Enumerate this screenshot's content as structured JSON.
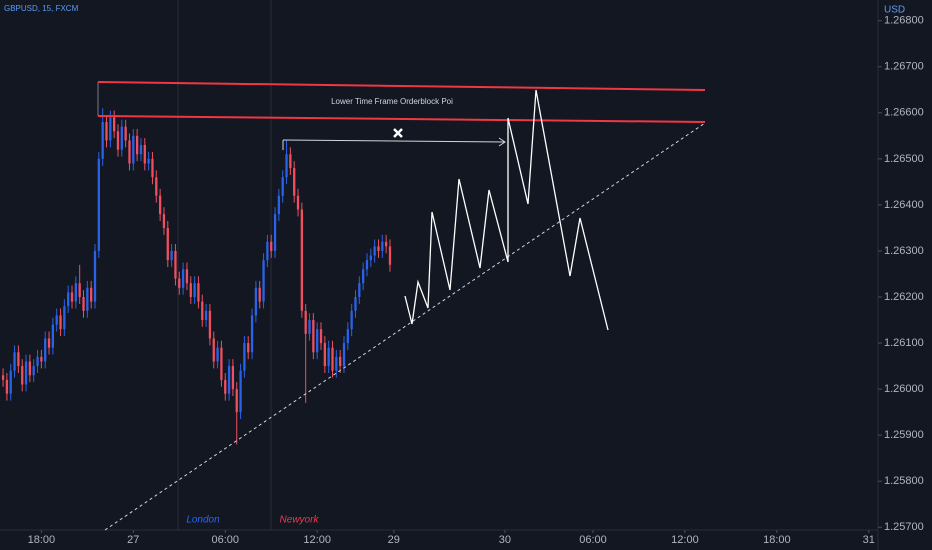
{
  "chart_data": {
    "type": "candlestick",
    "symbol": "GBPUSD, 15, FXCM",
    "currency": "USD",
    "annotations": [
      "Lower Time Frame Orderblock Poi",
      "London",
      "Newyork"
    ],
    "up_color": "#2a62e8",
    "down_color": "#ef4f5e",
    "grid": false,
    "x": [
      0,
      1,
      2,
      3,
      4,
      5,
      6,
      7,
      8,
      9,
      10,
      11,
      12,
      13,
      14,
      15,
      16,
      17,
      18,
      19,
      20,
      21,
      22,
      23,
      24,
      25,
      26,
      27,
      28,
      29,
      30,
      31,
      32,
      33,
      34,
      35,
      36,
      37,
      38,
      39,
      40,
      41,
      42,
      43,
      44,
      45,
      46,
      47,
      48,
      49,
      50,
      51,
      52,
      53,
      54,
      55,
      56,
      57,
      58,
      59,
      60,
      61,
      62,
      63,
      64,
      65,
      66,
      67,
      68,
      69,
      70,
      71,
      72,
      73,
      74,
      75,
      76,
      77,
      78,
      79,
      80,
      81,
      82,
      83,
      84,
      85,
      86,
      87,
      88,
      89,
      90,
      91,
      92,
      93,
      94,
      95,
      96,
      97,
      98,
      99,
      100,
      101
    ],
    "open": [
      1.2603,
      1.2602,
      1.2599,
      1.2604,
      1.2608,
      1.2605,
      1.2601,
      1.2606,
      1.2603,
      1.2605,
      1.2607,
      1.2606,
      1.2611,
      1.2609,
      1.2614,
      1.2616,
      1.2613,
      1.2618,
      1.2621,
      1.2619,
      1.2623,
      1.262,
      1.2617,
      1.2622,
      1.2619,
      1.263,
      1.265,
      1.2658,
      1.2654,
      1.2659,
      1.2656,
      1.2652,
      1.2657,
      1.2654,
      1.2649,
      1.2655,
      1.2651,
      1.2653,
      1.2649,
      1.265,
      1.2646,
      1.2642,
      1.2638,
      1.2635,
      1.2628,
      1.263,
      1.2624,
      1.2622,
      1.2626,
      1.2623,
      1.262,
      1.2623,
      1.2619,
      1.2615,
      1.2617,
      1.2611,
      1.2606,
      1.2609,
      1.2602,
      1.2599,
      1.2605,
      1.26,
      1.2595,
      1.2604,
      1.261,
      1.2608,
      1.2616,
      1.2622,
      1.2619,
      1.2628,
      1.2632,
      1.263,
      1.2638,
      1.2642,
      1.2646,
      1.2651,
      1.2648,
      1.2642,
      1.2639,
      1.2617,
      1.2612,
      1.2615,
      1.2608,
      1.2613,
      1.261,
      1.2605,
      1.2609,
      1.2604,
      1.2607,
      1.2605,
      1.261,
      1.2613,
      1.2617,
      1.262,
      1.2623,
      1.2626,
      1.2628,
      1.2629,
      1.2631,
      1.263,
      1.2632,
      1.2631
    ],
    "high": [
      1.26045,
      1.26035,
      1.26055,
      1.26095,
      1.26095,
      1.26065,
      1.26075,
      1.26075,
      1.26065,
      1.26085,
      1.26085,
      1.26125,
      1.26125,
      1.26155,
      1.26175,
      1.26175,
      1.26195,
      1.26225,
      1.26225,
      1.26245,
      1.2627,
      1.26215,
      1.26235,
      1.26235,
      1.26315,
      1.26515,
      1.2661,
      1.26595,
      1.26605,
      1.26605,
      1.26575,
      1.26585,
      1.26585,
      1.26555,
      1.26565,
      1.26565,
      1.26545,
      1.26545,
      1.26515,
      1.26515,
      1.26475,
      1.26435,
      1.26395,
      1.26365,
      1.26315,
      1.26315,
      1.26255,
      1.26275,
      1.26275,
      1.26245,
      1.26245,
      1.26245,
      1.26205,
      1.26185,
      1.26185,
      1.26125,
      1.26105,
      1.26105,
      1.26035,
      1.26065,
      1.26065,
      1.26015,
      1.26055,
      1.26115,
      1.26115,
      1.26175,
      1.26235,
      1.26235,
      1.26295,
      1.26335,
      1.26335,
      1.26395,
      1.26435,
      1.26475,
      1.2654,
      1.26525,
      1.26495,
      1.26435,
      1.26405,
      1.26185,
      1.26165,
      1.26165,
      1.26145,
      1.26145,
      1.26115,
      1.26105,
      1.26105,
      1.26085,
      1.26085,
      1.26115,
      1.26145,
      1.26185,
      1.26215,
      1.26245,
      1.26275,
      1.26295,
      1.26305,
      1.26325,
      1.26325,
      1.26335,
      1.26335,
      1.26325
    ],
    "low": [
      1.26005,
      1.25975,
      1.25975,
      1.26025,
      1.26035,
      1.25995,
      1.25995,
      1.26015,
      1.26015,
      1.26035,
      1.26045,
      1.26045,
      1.26075,
      1.26075,
      1.26125,
      1.26115,
      1.26115,
      1.26165,
      1.26175,
      1.26175,
      1.26185,
      1.26155,
      1.26155,
      1.26175,
      1.26175,
      1.26285,
      1.26485,
      1.26525,
      1.26525,
      1.26545,
      1.26505,
      1.26505,
      1.26525,
      1.26475,
      1.26475,
      1.26495,
      1.26495,
      1.26475,
      1.26475,
      1.26445,
      1.26405,
      1.26365,
      1.26335,
      1.26265,
      1.26265,
      1.26225,
      1.26205,
      1.26205,
      1.26215,
      1.26185,
      1.26185,
      1.26175,
      1.26135,
      1.26135,
      1.26095,
      1.26045,
      1.26045,
      1.26005,
      1.25975,
      1.25975,
      1.25985,
      1.2588,
      1.25935,
      1.26025,
      1.26065,
      1.26065,
      1.26145,
      1.26175,
      1.26175,
      1.26265,
      1.26285,
      1.26285,
      1.26365,
      1.26405,
      1.26445,
      1.26465,
      1.26405,
      1.26375,
      1.26155,
      1.2597,
      1.26105,
      1.26065,
      1.26065,
      1.26085,
      1.26035,
      1.26035,
      1.26025,
      1.26025,
      1.26035,
      1.26035,
      1.26085,
      1.26115,
      1.26155,
      1.26185,
      1.26215,
      1.26245,
      1.26265,
      1.26275,
      1.26285,
      1.26285,
      1.26295,
      1.26255
    ],
    "close": [
      1.2602,
      1.2599,
      1.2604,
      1.2608,
      1.2605,
      1.2601,
      1.2606,
      1.2603,
      1.2605,
      1.2607,
      1.2606,
      1.2611,
      1.2609,
      1.2614,
      1.2616,
      1.2613,
      1.2618,
      1.2621,
      1.2619,
      1.2623,
      1.262,
      1.2617,
      1.2622,
      1.2619,
      1.263,
      1.265,
      1.2658,
      1.2654,
      1.2659,
      1.2656,
      1.2652,
      1.2657,
      1.2654,
      1.2649,
      1.2655,
      1.2651,
      1.2653,
      1.2649,
      1.265,
      1.2646,
      1.2642,
      1.2638,
      1.2635,
      1.2628,
      1.263,
      1.2624,
      1.2622,
      1.2626,
      1.2623,
      1.262,
      1.2623,
      1.2619,
      1.2615,
      1.2617,
      1.2611,
      1.2606,
      1.2609,
      1.2602,
      1.2599,
      1.2605,
      1.26,
      1.2595,
      1.2604,
      1.261,
      1.2608,
      1.2616,
      1.2622,
      1.2619,
      1.2628,
      1.2632,
      1.263,
      1.2638,
      1.2642,
      1.2646,
      1.2651,
      1.2648,
      1.2642,
      1.2639,
      1.2617,
      1.2612,
      1.2615,
      1.2608,
      1.2613,
      1.261,
      1.2605,
      1.2609,
      1.2604,
      1.2607,
      1.2605,
      1.261,
      1.2613,
      1.2617,
      1.262,
      1.2623,
      1.2626,
      1.2628,
      1.2629,
      1.2631,
      1.263,
      1.2632,
      1.2631,
      1.2627
    ],
    "xlim": [
      -0.8,
      228.4
    ],
    "xticks": [
      {
        "value": 10,
        "label": "18:00"
      },
      {
        "value": 34,
        "label": "27"
      },
      {
        "value": 58,
        "label": "06:00"
      },
      {
        "value": 82,
        "label": "12:00"
      },
      {
        "value": 102,
        "label": "29"
      },
      {
        "value": 131,
        "label": "30"
      },
      {
        "value": 154,
        "label": "06:00"
      },
      {
        "value": 178,
        "label": "12:00"
      },
      {
        "value": 202,
        "label": "18:00"
      },
      {
        "value": 226,
        "label": "31"
      }
    ],
    "ylim": [
      1.25694,
      1.26845
    ],
    "yticks": [
      {
        "value": 1.257,
        "label": "1.25700"
      },
      {
        "value": 1.258,
        "label": "1.25800"
      },
      {
        "value": 1.259,
        "label": "1.25900"
      },
      {
        "value": 1.26,
        "label": "1.26000"
      },
      {
        "value": 1.261,
        "label": "1.26100"
      },
      {
        "value": 1.262,
        "label": "1.26200"
      },
      {
        "value": 1.263,
        "label": "1.26300"
      },
      {
        "value": 1.264,
        "label": "1.26400"
      },
      {
        "value": 1.265,
        "label": "1.26500"
      },
      {
        "value": 1.266,
        "label": "1.26600"
      },
      {
        "value": 1.267,
        "label": "1.26700"
      },
      {
        "value": 1.268,
        "label": "1.26800"
      }
    ]
  }
}
